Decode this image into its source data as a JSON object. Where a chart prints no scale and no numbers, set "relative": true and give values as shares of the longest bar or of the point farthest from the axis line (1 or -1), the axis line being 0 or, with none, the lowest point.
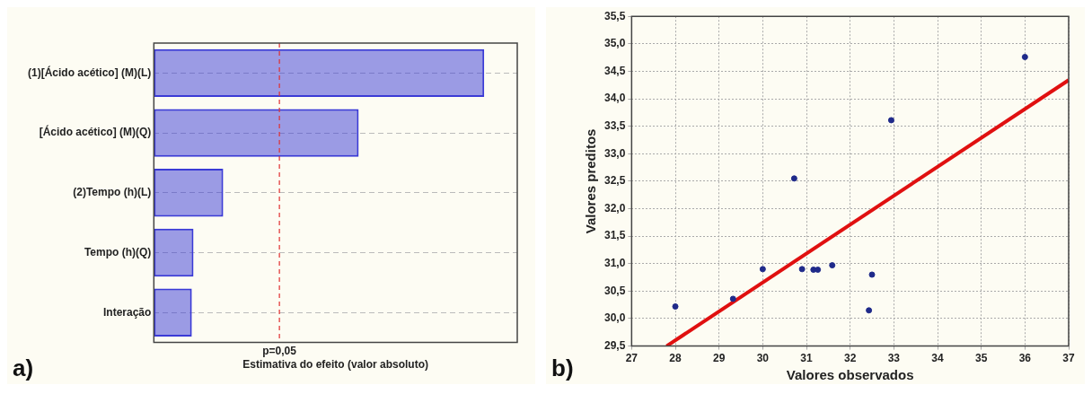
{
  "chart_data": [
    {
      "type": "bar",
      "orientation": "horizontal",
      "relative": true,
      "categories": [
        "(1)[Ácido acético] (M)(L)",
        "[Ácido acético] (M)(Q)",
        "(2)Tempo (h)(L)",
        "Tempo (h)(Q)",
        "Interação"
      ],
      "values": [
        1,
        0.62,
        0.21,
        0.12,
        0.115
      ],
      "color": "#3a3ad6",
      "xlabel": "Estimativa do efeito (valor absoluto)",
      "ref_lines": [
        {
          "axis": "x",
          "value": 0.38,
          "color": "#e03030",
          "line_style": "dashed"
        }
      ],
      "grid": "y",
      "annotations": [
        "a)",
        "p=0,05"
      ]
    },
    {
      "type": "scatter",
      "xlabel": "Valores observados",
      "ylabel": "Valores preditos",
      "series": [
        {
          "type": "scatter",
          "marker": "circle",
          "color": "#1f2a8a",
          "x": [
            28.0,
            29.32,
            30.0,
            30.72,
            30.9,
            31.16,
            31.26,
            31.59,
            32.43,
            32.5,
            32.94,
            36.0
          ],
          "values": [
            30.22,
            30.36,
            30.9,
            32.55,
            30.9,
            30.89,
            30.89,
            30.97,
            30.15,
            30.8,
            33.61,
            34.76
          ]
        },
        {
          "type": "line",
          "marker": "none",
          "color": "#e01010",
          "x": [
            27.8,
            37
          ],
          "values": [
            29.5,
            34.34
          ]
        }
      ],
      "xlim": [
        27,
        37
      ],
      "xticks": [
        27,
        28,
        29,
        30,
        31,
        32,
        33,
        34,
        35,
        36,
        37
      ],
      "ylim": [
        29.5,
        35.5
      ],
      "yticks": [
        {
          "value": 29.5,
          "label": "29,5"
        },
        {
          "value": 30,
          "label": "30,0"
        },
        {
          "value": 30.5,
          "label": "30,5"
        },
        {
          "value": 31,
          "label": "31,0"
        },
        {
          "value": 31.5,
          "label": "31,5"
        },
        {
          "value": 32,
          "label": "32,0"
        },
        {
          "value": 32.5,
          "label": "32,5"
        },
        {
          "value": 33,
          "label": "33,0"
        },
        {
          "value": 33.5,
          "label": "33,5"
        },
        {
          "value": 34,
          "label": "34,0"
        },
        {
          "value": 34.5,
          "label": "34,5"
        },
        {
          "value": 35,
          "label": "35,0"
        },
        {
          "value": 35.5,
          "label": "35,5"
        }
      ],
      "grid": true,
      "annotations": [
        "b)"
      ]
    }
  ]
}
